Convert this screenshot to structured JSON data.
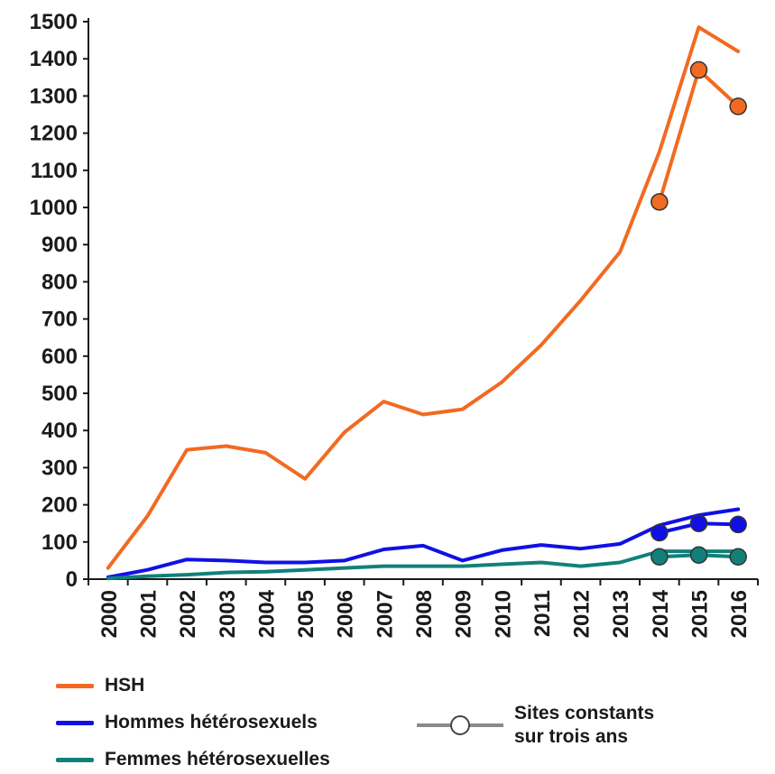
{
  "chart_data": {
    "type": "line",
    "x": [
      "2000",
      "2001",
      "2002",
      "2003",
      "2004",
      "2005",
      "2006",
      "2007",
      "2008",
      "2009",
      "2010",
      "2011",
      "2012",
      "2013",
      "2014",
      "2015",
      "2016"
    ],
    "ylim": [
      0,
      1500
    ],
    "yticks": [
      0,
      100,
      200,
      300,
      400,
      500,
      600,
      700,
      800,
      900,
      1000,
      1100,
      1200,
      1300,
      1400,
      1500
    ],
    "grid": false,
    "series": [
      {
        "name": "HSH",
        "color": "#F26A21",
        "values": [
          30,
          170,
          348,
          358,
          340,
          270,
          395,
          478,
          443,
          457,
          530,
          630,
          750,
          880,
          1150,
          1485,
          1420
        ]
      },
      {
        "name": "Hommes hétérosexuels",
        "color": "#1010E6",
        "values": [
          5,
          25,
          53,
          50,
          45,
          45,
          50,
          80,
          90,
          50,
          78,
          92,
          82,
          95,
          145,
          172,
          188
        ]
      },
      {
        "name": "Femmes hétérosexuelles",
        "color": "#12807A",
        "values": [
          2,
          8,
          12,
          18,
          20,
          25,
          30,
          35,
          35,
          35,
          40,
          45,
          35,
          45,
          75,
          75,
          75
        ]
      }
    ],
    "constant_sites": {
      "label_line1": "Sites constants",
      "label_line2": "sur trois ans",
      "x": [
        "2014",
        "2015",
        "2016"
      ],
      "series": [
        {
          "color": "#F26A21",
          "values": [
            1015,
            1370,
            1272
          ]
        },
        {
          "color": "#1010E6",
          "values": [
            125,
            150,
            147
          ]
        },
        {
          "color": "#12807A",
          "values": [
            60,
            65,
            60
          ]
        }
      ]
    }
  }
}
